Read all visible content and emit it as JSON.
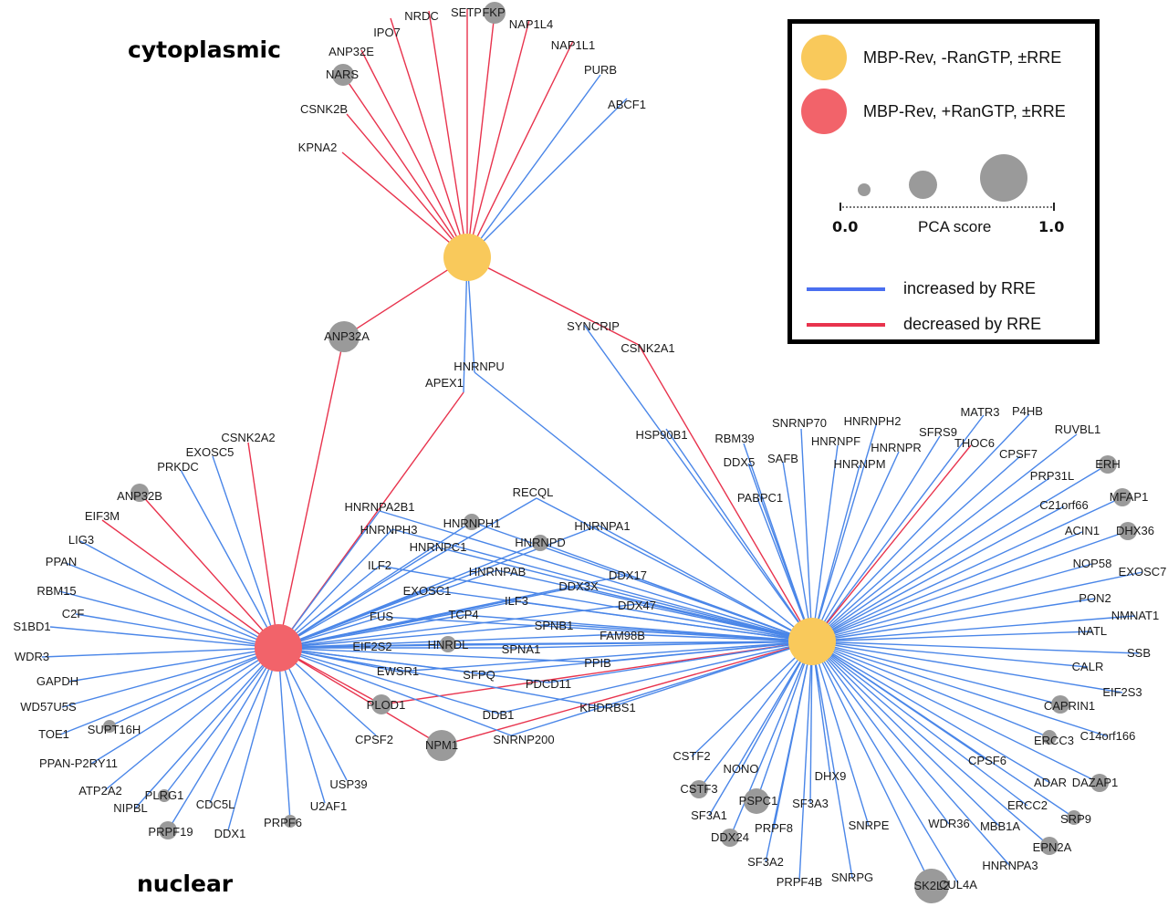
{
  "colors": {
    "blue": "#4a86e8",
    "red": "#e8334d",
    "hub_yellow": "#f9c95b",
    "hub_red": "#f2636a",
    "protein": "#9a9a9a"
  },
  "regions": {
    "top": "cytoplasmic",
    "bottom": "nuclear"
  },
  "legend": {
    "hub_yellow_label": "MBP-Rev, -RanGTP, ±RRE",
    "hub_red_label": "MBP-Rev, +RanGTP, ±RRE",
    "scale_min": "0.0",
    "scale_title": "PCA score",
    "scale_max": "1.0",
    "edge_blue_label": "increased by RRE",
    "edge_red_label": "decreased by RRE"
  },
  "proteins": {
    "IPO7": "IPO7",
    "NRDC": "NRDC",
    "SETP": "SETP",
    "FKP": "FKP",
    "NAP1L4": "NAP1L4",
    "NAP1L1": "NAP1L1",
    "ANP32E": "ANP32E",
    "NARS": "NARS",
    "PURB": "PURB",
    "ABCF1": "ABCF1",
    "CSNK2B": "CSNK2B",
    "KPNA2": "KPNA2",
    "ANP32A": "ANP32A",
    "SYNCRIP": "SYNCRIP",
    "CSNK2A1": "CSNK2A1",
    "HNRNPU": "HNRNPU",
    "APEX1": "APEX1",
    "HSP90B1": "HSP90B1",
    "CSNK2A2": "CSNK2A2",
    "EXOSC5": "EXOSC5",
    "PRKDC": "PRKDC",
    "ANP32B": "ANP32B",
    "EIF3M": "EIF3M",
    "LIG3": "LIG3",
    "PPAN": "PPAN",
    "RBM15": "RBM15",
    "C2F": "C2F",
    "S1BD1": "S1BD1",
    "WDR3": "WDR3",
    "GAPDH": "GAPDH",
    "WD57U5S": "WD57U5S",
    "TOE1": "TOE1",
    "SUPT16H": "SUPT16H",
    "PPAN-P2RY11": "PPAN-P2RY11",
    "ATP2A2": "ATP2A2",
    "PLRG1": "PLRG1",
    "NIPBL": "NIPBL",
    "CDC5L": "CDC5L",
    "PRPF19": "PRPF19",
    "DDX1": "DDX1",
    "PRPF6": "PRPF6",
    "U2AF1": "U2AF1",
    "USP39": "USP39",
    "CPSF2": "CPSF2",
    "PLOD1": "PLOD1",
    "NPM1": "NPM1",
    "SNRNP200": "SNRNP200",
    "DDB1": "DDB1",
    "KHDRBS1": "KHDRBS1",
    "HNRNPA2B1": "HNRNPA2B1",
    "HNRNPH3": "HNRNPH3",
    "HNRNPC1": "HNRNPC1",
    "HNRNPH1": "HNRNPH1",
    "RECQL": "RECQL",
    "HNRNPA1": "HNRNPA1",
    "HNRNPD": "HNRNPD",
    "ILF2": "ILF2",
    "HNRNPAB": "HNRNPAB",
    "EXOSC1": "EXOSC1",
    "DDX3X": "DDX3X",
    "DDX17": "DDX17",
    "ILF3": "ILF3",
    "DDX47": "DDX47",
    "FUS": "FUS",
    "TCP4": "TCP4",
    "SPNB1": "SPNB1",
    "FAM98B": "FAM98B",
    "EIF2S2": "EIF2S2",
    "HNRDL": "HNRDL",
    "SPNA1": "SPNA1",
    "EWSR1": "EWSR1",
    "SFPQ": "SFPQ",
    "PPIB": "PPIB",
    "PDCD11": "PDCD11",
    "SNRNP70": "SNRNP70",
    "HNRNPH2": "HNRNPH2",
    "RBM39": "RBM39",
    "HNRNPF": "HNRNPF",
    "HNRNPR": "HNRNPR",
    "SFRS9": "SFRS9",
    "MATR3": "MATR3",
    "P4HB": "P4HB",
    "THOC6": "THOC6",
    "RUVBL1": "RUVBL1",
    "DDX5": "DDX5",
    "SAFB": "SAFB",
    "HNRNPM": "HNRNPM",
    "CPSF7": "CPSF7",
    "ERH": "ERH",
    "PRP31L": "PRP31L",
    "PABPC1": "PABPC1",
    "C21orf66": "C21orf66",
    "MFAP1": "MFAP1",
    "ACIN1": "ACIN1",
    "DHX36": "DHX36",
    "NOP58": "NOP58",
    "EXOSC7": "EXOSC7",
    "PON2": "PON2",
    "NMNAT1": "NMNAT1",
    "NATL": "NATL",
    "SSB": "SSB",
    "CALR": "CALR",
    "EIF2S3": "EIF2S3",
    "CAPRIN1": "CAPRIN1",
    "C14orf166": "C14orf166",
    "ERCC3": "ERCC3",
    "CPSF6": "CPSF6",
    "ADAR": "ADAR",
    "DAZAP1": "DAZAP1",
    "ERCC2": "ERCC2",
    "SRP9": "SRP9",
    "MBB1A": "MBB1A",
    "EPN2A": "EPN2A",
    "WDR36": "WDR36",
    "HNRNPA3": "HNRNPA3",
    "CUL4A": "CUL4A",
    "SK2L2": "SK2L2",
    "SNRPG": "SNRPG",
    "SNRPE": "SNRPE",
    "PRPF4B": "PRPF4B",
    "SF3A2": "SF3A2",
    "PRPF8": "PRPF8",
    "DHX9": "DHX9",
    "SF3A3": "SF3A3",
    "DDX24": "DDX24",
    "PSPC1": "PSPC1",
    "SF3A1": "SF3A1",
    "CSTF3": "CSTF3",
    "NONO": "NONO",
    "CSTF2": "CSTF2"
  }
}
